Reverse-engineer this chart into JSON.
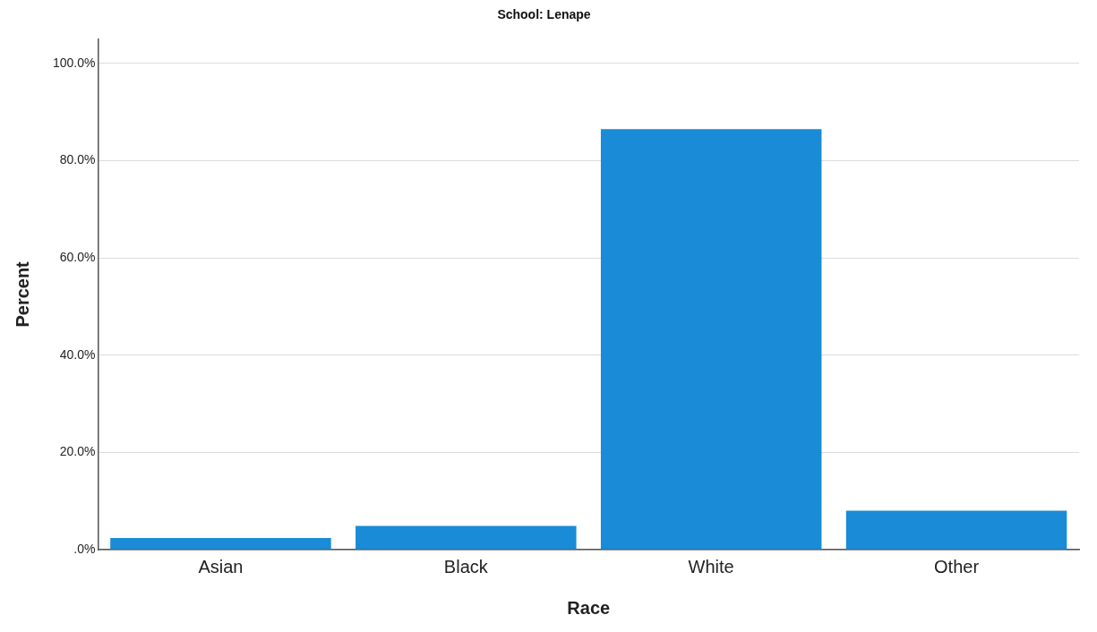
{
  "chart_data": {
    "type": "bar",
    "title": "School: Lenape",
    "xlabel": "Race",
    "ylabel": "Percent",
    "categories": [
      "Asian",
      "Black",
      "White",
      "Other"
    ],
    "values": [
      2.4,
      4.9,
      86.5,
      8.0
    ],
    "color": "#1a8bd6",
    "ylim": [
      0,
      105
    ],
    "yticks": [
      {
        "value": 0,
        "label": ".0%"
      },
      {
        "value": 20,
        "label": "20.0%"
      },
      {
        "value": 40,
        "label": "40.0%"
      },
      {
        "value": 60,
        "label": "60.0%"
      },
      {
        "value": 80,
        "label": "80.0%"
      },
      {
        "value": 100,
        "label": "100.0%"
      }
    ],
    "grid": "y",
    "legend": false
  }
}
